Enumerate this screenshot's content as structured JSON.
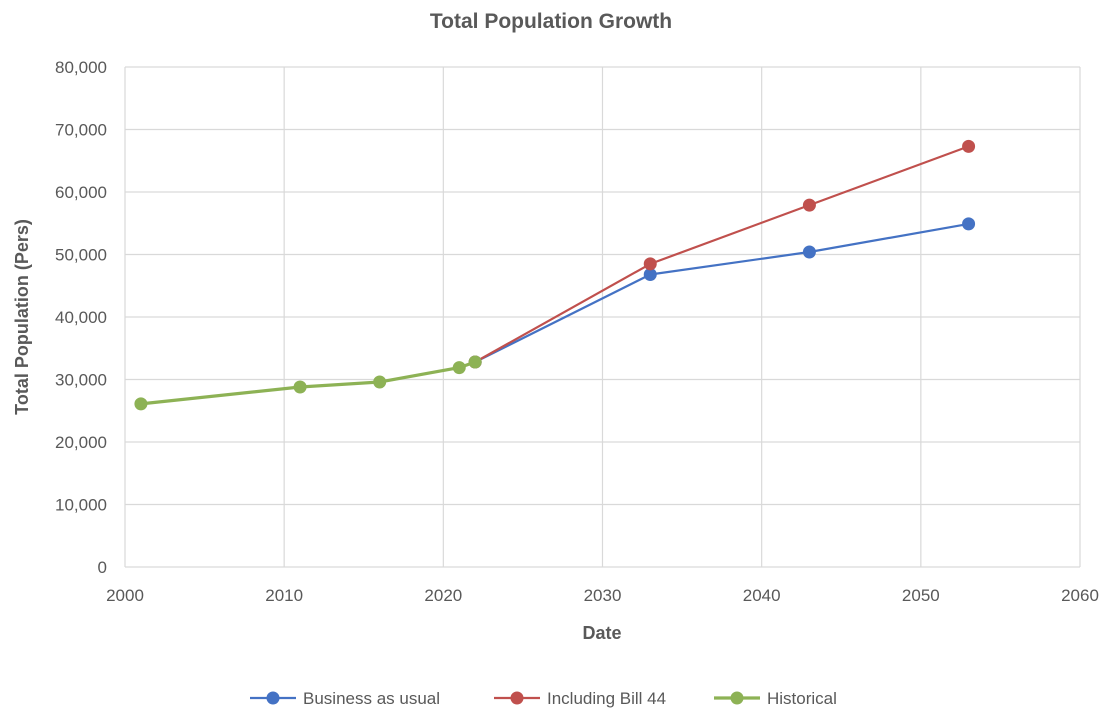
{
  "chart_data": {
    "type": "line",
    "title": "Total Population Growth",
    "xlabel": "Date",
    "ylabel": "Total Population (Pers)",
    "xlim": [
      2000,
      2060
    ],
    "ylim": [
      0,
      80000
    ],
    "x_ticks": [
      2000,
      2010,
      2020,
      2030,
      2040,
      2050,
      2060
    ],
    "x_tick_labels": [
      "2000",
      "2010",
      "2020",
      "2030",
      "2040",
      "2050",
      "2060"
    ],
    "y_ticks": [
      0,
      10000,
      20000,
      30000,
      40000,
      50000,
      60000,
      70000,
      80000
    ],
    "y_tick_labels": [
      "0",
      "10,000",
      "20,000",
      "30,000",
      "40,000",
      "50,000",
      "60,000",
      "70,000",
      "80,000"
    ],
    "grid": true,
    "legend_position": "bottom",
    "series": [
      {
        "name": "Business as usual",
        "color": "#4472c4",
        "points": [
          {
            "x": 2022,
            "y": 32800
          },
          {
            "x": 2033,
            "y": 46800
          },
          {
            "x": 2043,
            "y": 50400
          },
          {
            "x": 2053,
            "y": 54900
          }
        ]
      },
      {
        "name": "Including Bill 44",
        "color": "#c0504d",
        "points": [
          {
            "x": 2022,
            "y": 32800
          },
          {
            "x": 2033,
            "y": 48500
          },
          {
            "x": 2043,
            "y": 57900
          },
          {
            "x": 2053,
            "y": 67300
          }
        ]
      },
      {
        "name": "Historical",
        "color": "#8db255",
        "points": [
          {
            "x": 2001,
            "y": 26100
          },
          {
            "x": 2011,
            "y": 28800
          },
          {
            "x": 2016,
            "y": 29600
          },
          {
            "x": 2021,
            "y": 31900
          },
          {
            "x": 2022,
            "y": 32800
          }
        ]
      }
    ]
  }
}
